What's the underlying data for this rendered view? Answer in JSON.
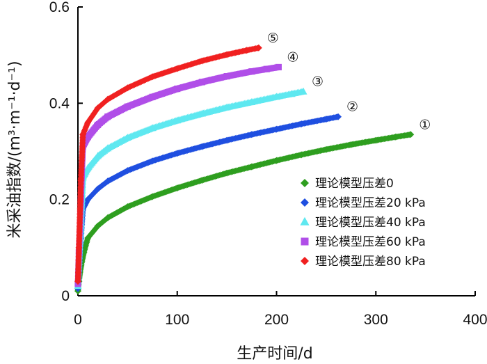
{
  "chart_data": {
    "type": "scatter",
    "title": "",
    "xlabel": "生产时间/d",
    "ylabel_main": "米采油指数/",
    "ylabel_units": "(m³·m⁻¹·d⁻¹)",
    "xlim": [
      0,
      400
    ],
    "ylim": [
      0,
      0.6
    ],
    "x_ticks": [
      0,
      100,
      200,
      300,
      400
    ],
    "x_tick_labels": [
      "0",
      "100",
      "200",
      "300",
      "400"
    ],
    "y_ticks": [
      0,
      0.2,
      0.4,
      0.6
    ],
    "y_tick_labels": [
      "0",
      "0.2",
      "0.4",
      "0.6"
    ],
    "grid": false,
    "legend_position": "bottom-right",
    "series": [
      {
        "name": "理论模型压差0",
        "label": "①",
        "color": "#2e9e1f",
        "marker": "diamond",
        "points": [
          [
            0,
            0.01
          ],
          [
            1,
            0.03
          ],
          [
            3,
            0.06
          ],
          [
            6,
            0.09
          ],
          [
            10,
            0.12
          ],
          [
            20,
            0.145
          ],
          [
            30,
            0.162
          ],
          [
            50,
            0.185
          ],
          [
            75,
            0.206
          ],
          [
            100,
            0.224
          ],
          [
            125,
            0.24
          ],
          [
            150,
            0.255
          ],
          [
            175,
            0.268
          ],
          [
            200,
            0.281
          ],
          [
            225,
            0.293
          ],
          [
            250,
            0.304
          ],
          [
            275,
            0.314
          ],
          [
            300,
            0.323
          ],
          [
            320,
            0.33
          ],
          [
            335,
            0.335
          ]
        ]
      },
      {
        "name": "理论模型压差20 kPa",
        "label": "②",
        "color": "#1f4fe0",
        "marker": "diamond",
        "points": [
          [
            0,
            0.015
          ],
          [
            1,
            0.05
          ],
          [
            3,
            0.12
          ],
          [
            5,
            0.18
          ],
          [
            10,
            0.2
          ],
          [
            20,
            0.222
          ],
          [
            30,
            0.238
          ],
          [
            50,
            0.26
          ],
          [
            75,
            0.28
          ],
          [
            100,
            0.296
          ],
          [
            125,
            0.31
          ],
          [
            150,
            0.323
          ],
          [
            175,
            0.335
          ],
          [
            200,
            0.346
          ],
          [
            225,
            0.357
          ],
          [
            250,
            0.367
          ],
          [
            262,
            0.372
          ]
        ]
      },
      {
        "name": "理论模型压差40 kPa",
        "label": "③",
        "color": "#5ee8f0",
        "marker": "triangle",
        "points": [
          [
            0,
            0.02
          ],
          [
            1,
            0.07
          ],
          [
            3,
            0.15
          ],
          [
            5,
            0.245
          ],
          [
            10,
            0.265
          ],
          [
            20,
            0.29
          ],
          [
            30,
            0.306
          ],
          [
            50,
            0.328
          ],
          [
            75,
            0.348
          ],
          [
            100,
            0.364
          ],
          [
            125,
            0.378
          ],
          [
            150,
            0.391
          ],
          [
            175,
            0.402
          ],
          [
            200,
            0.413
          ],
          [
            215,
            0.419
          ],
          [
            227,
            0.424
          ]
        ]
      },
      {
        "name": "理论模型压差60 kPa",
        "label": "④",
        "color": "#b04ee8",
        "marker": "square",
        "points": [
          [
            0,
            0.025
          ],
          [
            1,
            0.09
          ],
          [
            3,
            0.2
          ],
          [
            5,
            0.31
          ],
          [
            10,
            0.33
          ],
          [
            20,
            0.355
          ],
          [
            30,
            0.372
          ],
          [
            50,
            0.393
          ],
          [
            75,
            0.413
          ],
          [
            100,
            0.43
          ],
          [
            125,
            0.444
          ],
          [
            150,
            0.456
          ],
          [
            175,
            0.466
          ],
          [
            190,
            0.471
          ],
          [
            202,
            0.475
          ]
        ]
      },
      {
        "name": "理论模型压差80 kPa",
        "label": "⑤",
        "color": "#f02020",
        "marker": "diamond",
        "points": [
          [
            0,
            0.03
          ],
          [
            1,
            0.1
          ],
          [
            3,
            0.24
          ],
          [
            5,
            0.335
          ],
          [
            10,
            0.36
          ],
          [
            20,
            0.39
          ],
          [
            30,
            0.408
          ],
          [
            50,
            0.432
          ],
          [
            75,
            0.455
          ],
          [
            100,
            0.472
          ],
          [
            125,
            0.488
          ],
          [
            150,
            0.501
          ],
          [
            170,
            0.51
          ],
          [
            182,
            0.515
          ]
        ]
      }
    ]
  }
}
